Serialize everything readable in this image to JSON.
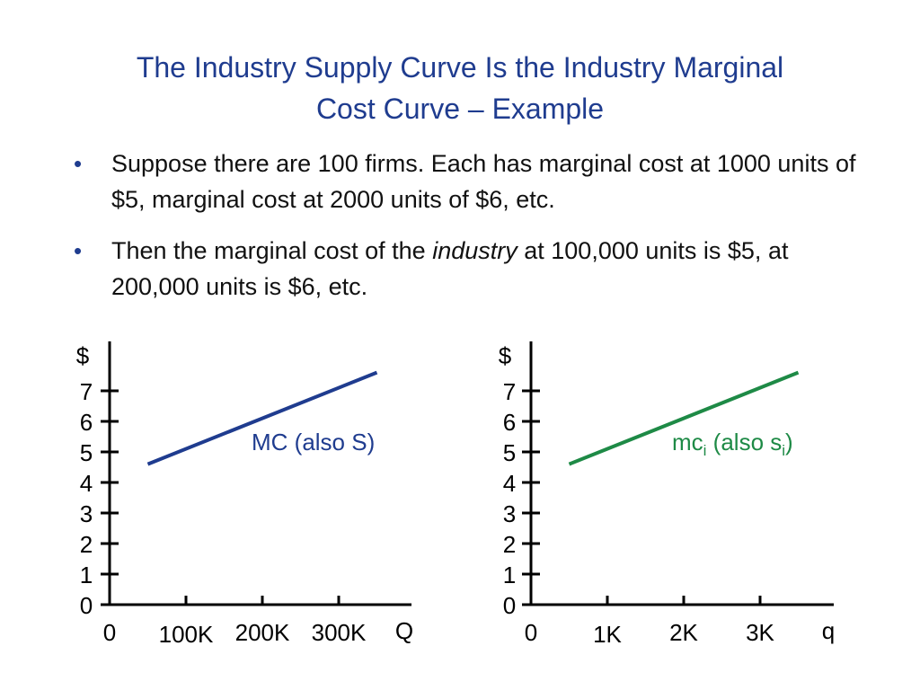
{
  "slide": {
    "title_line1": "The Industry Supply Curve Is the Industry Marginal",
    "title_line2": "Cost Curve – Example",
    "title_color": "#1f3c8f",
    "bullets": [
      {
        "marker": "•",
        "text_before": "Suppose there are 100 firms. Each has marginal cost at 1000 units of $5, marginal cost at 2000 units of $6, etc.",
        "text_italic": "",
        "text_after": ""
      },
      {
        "marker": "•",
        "text_before": "Then the marginal cost of the ",
        "text_italic": "industry",
        "text_after": " at 100,000 units is $5, at 200,000 units is $6, etc."
      }
    ]
  },
  "chart_data": [
    {
      "type": "line",
      "ylabel": "$",
      "xlabel": "Q",
      "y_ticks": [
        "0",
        "1",
        "2",
        "3",
        "4",
        "5",
        "6",
        "7"
      ],
      "x_ticks": [
        "0",
        "100K",
        "200K",
        "300K"
      ],
      "xlim": [
        0,
        300000
      ],
      "ylim": [
        0,
        7
      ],
      "series": [
        {
          "name": "MC (also S)",
          "color": "#1f3c8f",
          "x": [
            50000,
            350000
          ],
          "y": [
            4.6,
            7.6
          ]
        }
      ],
      "annotation": {
        "text": "MC (also S)",
        "sub_1": "",
        "mid": "",
        "sub_2": "",
        "tail": ""
      }
    },
    {
      "type": "line",
      "ylabel": "$",
      "xlabel": "q",
      "y_ticks": [
        "0",
        "1",
        "2",
        "3",
        "4",
        "5",
        "6",
        "7"
      ],
      "x_ticks": [
        "0",
        "1K",
        "2K",
        "3K"
      ],
      "xlim": [
        0,
        3000
      ],
      "ylim": [
        0,
        7
      ],
      "series": [
        {
          "name": "mci (also si)",
          "color": "#1e8a46",
          "x": [
            500,
            3500
          ],
          "y": [
            4.6,
            7.6
          ]
        }
      ],
      "annotation": {
        "text": "mc",
        "sub_1": "i",
        "mid": " (also s",
        "sub_2": "i",
        "tail": ")"
      }
    }
  ]
}
